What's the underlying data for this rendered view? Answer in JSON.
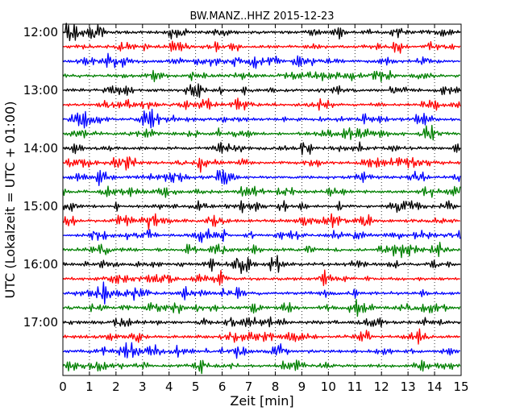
{
  "chart_data": {
    "type": "line",
    "title": "BW.MANZ..HHZ 2015-12-23",
    "xlabel": "Zeit  [min]",
    "ylabel": "UTC (Lokalzeit = UTC + 01:00)",
    "xlim": [
      0,
      15
    ],
    "x_ticks": [
      "0",
      "1",
      "2",
      "3",
      "4",
      "5",
      "6",
      "7",
      "8",
      "9",
      "10",
      "11",
      "12",
      "13",
      "14",
      "15"
    ],
    "y_ticks": [
      "12:00",
      "13:00",
      "14:00",
      "15:00",
      "16:00",
      "17:00"
    ],
    "grid": "vertical dotted",
    "colors": [
      "#000000",
      "#ff0000",
      "#0000ff",
      "#008000"
    ],
    "trace_start_hour": 12,
    "traces_per_hour": 4,
    "trace_count": 24
  }
}
